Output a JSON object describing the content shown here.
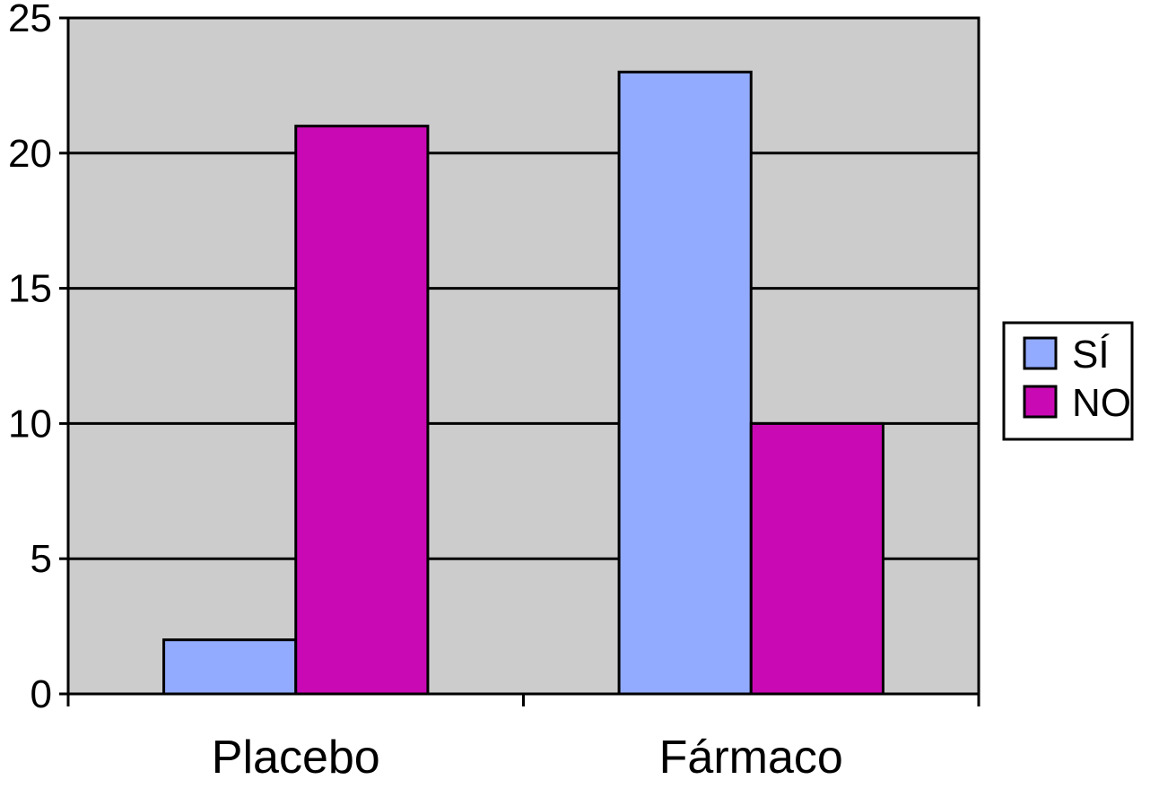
{
  "chart_data": {
    "type": "bar",
    "title": "",
    "xlabel": "",
    "ylabel": "",
    "categories": [
      "Placebo",
      "Fármaco"
    ],
    "series": [
      {
        "name": "SÍ",
        "values": [
          2,
          23
        ],
        "color": "#93abff"
      },
      {
        "name": "NO",
        "values": [
          21,
          10
        ],
        "color": "#c90ab4"
      }
    ],
    "ylim": [
      0,
      25
    ],
    "yticks": [
      0,
      5,
      10,
      15,
      20,
      25
    ],
    "grid": true,
    "plot_background": "#cccccc",
    "legend_position": "right"
  }
}
